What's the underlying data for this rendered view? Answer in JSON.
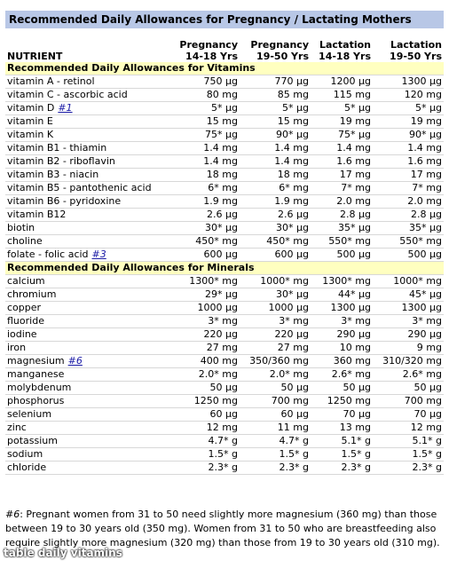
{
  "title": "Recommended Daily Allowances for Pregnancy / Lactating Mothers",
  "table": {
    "header": [
      [
        "NUTRIENT"
      ],
      [
        "Pregnancy",
        "14-18 Yrs"
      ],
      [
        "Pregnancy",
        "19-50 Yrs"
      ],
      [
        "Lactation",
        "14-18 Yrs"
      ],
      [
        "Lactation",
        "19-50 Yrs"
      ]
    ],
    "sections": [
      {
        "title": "Recommended Daily Allowances for Vitamins",
        "rows": [
          {
            "nutrient": "vitamin A - retinol",
            "values": [
              "750 µg",
              "770 µg",
              "1200 µg",
              "1300 µg"
            ]
          },
          {
            "nutrient": "vitamin C - ascorbic acid",
            "values": [
              "80 mg",
              "85 mg",
              "115 mg",
              "120 mg"
            ]
          },
          {
            "nutrient": "vitamin D",
            "note": "#1",
            "values": [
              "5* µg",
              "5* µg",
              "5* µg",
              "5* µg"
            ]
          },
          {
            "nutrient": "vitamin E",
            "values": [
              "15 mg",
              "15 mg",
              "19 mg",
              "19 mg"
            ]
          },
          {
            "nutrient": "vitamin K",
            "values": [
              "75* µg",
              "90* µg",
              "75* µg",
              "90* µg"
            ]
          },
          {
            "nutrient": "vitamin B1 - thiamin",
            "values": [
              "1.4 mg",
              "1.4 mg",
              "1.4 mg",
              "1.4 mg"
            ]
          },
          {
            "nutrient": "vitamin B2 - riboflavin",
            "values": [
              "1.4 mg",
              "1.4 mg",
              "1.6 mg",
              "1.6 mg"
            ]
          },
          {
            "nutrient": "vitamin B3 - niacin",
            "values": [
              "18 mg",
              "18 mg",
              "17 mg",
              "17 mg"
            ]
          },
          {
            "nutrient": "vitamin B5 - pantothenic acid",
            "values": [
              "6* mg",
              "6* mg",
              "7* mg",
              "7* mg"
            ]
          },
          {
            "nutrient": "vitamin B6 - pyridoxine",
            "values": [
              "1.9 mg",
              "1.9 mg",
              "2.0 mg",
              "2.0 mg"
            ]
          },
          {
            "nutrient": "vitamin B12",
            "values": [
              "2.6 µg",
              "2.6 µg",
              "2.8 µg",
              "2.8 µg"
            ]
          },
          {
            "nutrient": "biotin",
            "values": [
              "30* µg",
              "30* µg",
              "35* µg",
              "35* µg"
            ]
          },
          {
            "nutrient": "choline",
            "values": [
              "450* mg",
              "450* mg",
              "550* mg",
              "550* mg"
            ]
          },
          {
            "nutrient": "folate - folic acid",
            "note": "#3",
            "values": [
              "600 µg",
              "600 µg",
              "500 µg",
              "500 µg"
            ]
          }
        ]
      },
      {
        "title": "Recommended Daily Allowances for Minerals",
        "rows": [
          {
            "nutrient": "calcium",
            "values": [
              "1300* mg",
              "1000* mg",
              "1300* mg",
              "1000* mg"
            ]
          },
          {
            "nutrient": "chromium",
            "values": [
              "29* µg",
              "30* µg",
              "44* µg",
              "45* µg"
            ]
          },
          {
            "nutrient": "copper",
            "values": [
              "1000 µg",
              "1000 µg",
              "1300 µg",
              "1300 µg"
            ]
          },
          {
            "nutrient": "fluoride",
            "values": [
              "3* mg",
              "3* mg",
              "3* mg",
              "3* mg"
            ]
          },
          {
            "nutrient": "iodine",
            "values": [
              "220 µg",
              "220 µg",
              "290 µg",
              "290 µg"
            ]
          },
          {
            "nutrient": "iron",
            "values": [
              "27 mg",
              "27 mg",
              "10 mg",
              "9 mg"
            ]
          },
          {
            "nutrient": "magnesium",
            "note": "#6",
            "values": [
              "400 mg",
              "350/360 mg",
              "360 mg",
              "310/320 mg"
            ]
          },
          {
            "nutrient": "manganese",
            "values": [
              "2.0* mg",
              "2.0* mg",
              "2.6* mg",
              "2.6* mg"
            ]
          },
          {
            "nutrient": "molybdenum",
            "values": [
              "50 µg",
              "50 µg",
              "50 µg",
              "50 µg"
            ]
          },
          {
            "nutrient": "phosphorus",
            "values": [
              "1250 mg",
              "700 mg",
              "1250 mg",
              "700 mg"
            ]
          },
          {
            "nutrient": "selenium",
            "values": [
              "60 µg",
              "60 µg",
              "70 µg",
              "70 µg"
            ]
          },
          {
            "nutrient": "zinc",
            "values": [
              "12 mg",
              "11 mg",
              "13 mg",
              "12 mg"
            ]
          },
          {
            "nutrient": "potassium",
            "values": [
              "4.7* g",
              "4.7* g",
              "5.1* g",
              "5.1* g"
            ]
          },
          {
            "nutrient": "sodium",
            "values": [
              "1.5* g",
              "1.5* g",
              "1.5* g",
              "1.5* g"
            ]
          },
          {
            "nutrient": "chloride",
            "values": [
              "2.3* g",
              "2.3* g",
              "2.3* g",
              "2.3* g"
            ]
          }
        ]
      }
    ]
  },
  "footnote": {
    "label": "#6",
    "text": ": Pregnant women from 31 to 50 need slightly more magnesium (360 mg) than those between 19 to 30 years old (350 mg).  Women from 31 to 50 who are breastfeeding also require slightly more magnesium (320 mg) than those from 19 to 30 years old (310 mg)."
  },
  "watermark": "table daily vitamins"
}
